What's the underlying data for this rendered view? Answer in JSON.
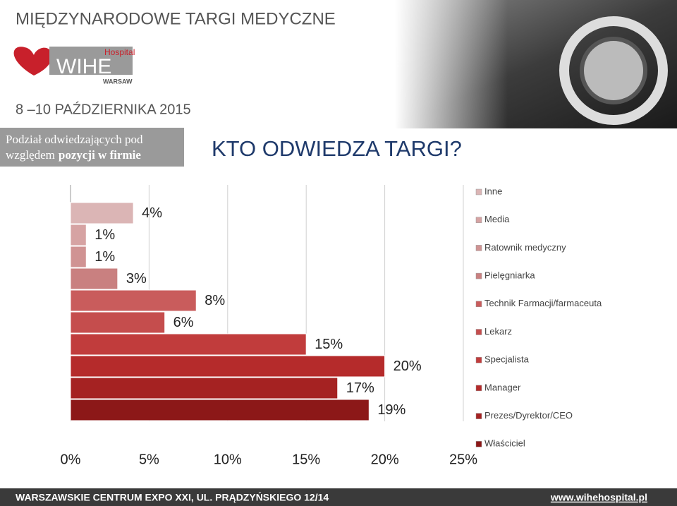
{
  "header": {
    "fair": "MIĘDZYNARODOWE TARGI MEDYCZNE",
    "logo_small": "Hospital",
    "logo_main": "WIHE",
    "logo_city": "WARSAW",
    "dates": "8 –10 PAŹDZIERNIKA 2015",
    "sidebar": [
      "Podział odwiedzających pod",
      "względem",
      "pozycji w firmie"
    ]
  },
  "chart_data": {
    "type": "bar",
    "orientation": "horizontal",
    "title": "KTO ODWIEDZA TARGI?",
    "categories": [
      "Inne",
      "Media",
      "Ratownik medyczny",
      "Pielęgniarka",
      "Technik Farmacji/farmaceuta",
      "Lekarz",
      "Specjalista",
      "Manager",
      "Prezes/Dyrektor/CEO",
      "Właściciel"
    ],
    "values": [
      4,
      1,
      1,
      3,
      8,
      6,
      15,
      20,
      17,
      19
    ],
    "value_labels": [
      "4%",
      "1%",
      "1%",
      "3%",
      "8%",
      "6%",
      "15%",
      "20%",
      "17%",
      "19%"
    ],
    "colors": [
      "#dbb5b5",
      "#d6a3a3",
      "#d09393",
      "#c98080",
      "#c95c5c",
      "#c54d4d",
      "#c13c3c",
      "#b52b2b",
      "#a52222",
      "#8c1818"
    ],
    "xlim": [
      0,
      25
    ],
    "xticks": [
      {
        "value": 0,
        "label": "0%"
      },
      {
        "value": 5,
        "label": "5%"
      },
      {
        "value": 10,
        "label": "10%"
      },
      {
        "value": 15,
        "label": "15%"
      },
      {
        "value": 20,
        "label": "20%"
      },
      {
        "value": 25,
        "label": "25%"
      }
    ],
    "grid": true,
    "legend": "right"
  },
  "footer": {
    "address": "WARSZAWSKIE CENTRUM EXPO XXI, UL. PRĄDZYŃSKIEGO 12/14",
    "url": "www.wihehospital.pl"
  }
}
